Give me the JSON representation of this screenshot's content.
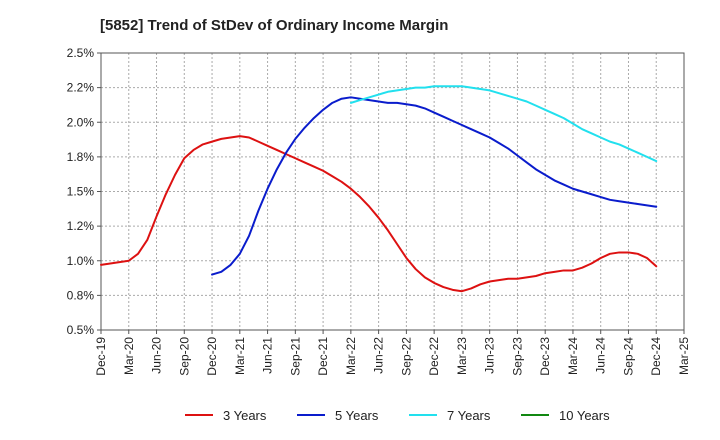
{
  "chart_data": {
    "type": "line",
    "title": "[5852]  Trend of StDev of Ordinary Income Margin",
    "xlabel": "",
    "ylabel": "",
    "x_ticks": [
      "Dec-19",
      "Mar-20",
      "Jun-20",
      "Sep-20",
      "Dec-20",
      "Mar-21",
      "Jun-21",
      "Sep-21",
      "Dec-21",
      "Mar-22",
      "Jun-22",
      "Sep-22",
      "Dec-22",
      "Mar-23",
      "Jun-23",
      "Sep-23",
      "Dec-23",
      "Mar-24",
      "Jun-24",
      "Sep-24",
      "Dec-24",
      "Mar-25"
    ],
    "y_ticks": [
      "0.5%",
      "0.8%",
      "1.0%",
      "1.2%",
      "1.5%",
      "1.8%",
      "2.0%",
      "2.2%",
      "2.5%"
    ],
    "ylim": [
      0.5,
      2.5
    ],
    "grid": true,
    "legend_position": "bottom",
    "series": [
      {
        "name": "3 Years",
        "color": "#dd1111",
        "x": [
          "Dec-19",
          "Jan-20",
          "Feb-20",
          "Mar-20",
          "Apr-20",
          "May-20",
          "Jun-20",
          "Jul-20",
          "Aug-20",
          "Sep-20",
          "Oct-20",
          "Nov-20",
          "Dec-20",
          "Jan-21",
          "Feb-21",
          "Mar-21",
          "Apr-21",
          "May-21",
          "Jun-21",
          "Jul-21",
          "Aug-21",
          "Sep-21",
          "Oct-21",
          "Nov-21",
          "Dec-21",
          "Jan-22",
          "Feb-22",
          "Mar-22",
          "Apr-22",
          "May-22",
          "Jun-22",
          "Jul-22",
          "Aug-22",
          "Sep-22",
          "Oct-22",
          "Nov-22",
          "Dec-22",
          "Jan-23",
          "Feb-23",
          "Mar-23",
          "Apr-23",
          "May-23",
          "Jun-23",
          "Jul-23",
          "Aug-23",
          "Sep-23",
          "Oct-23",
          "Nov-23",
          "Dec-23",
          "Jan-24",
          "Feb-24",
          "Mar-24",
          "Apr-24",
          "May-24",
          "Jun-24",
          "Jul-24",
          "Aug-24",
          "Sep-24",
          "Oct-24",
          "Nov-24",
          "Dec-24"
        ],
        "values": [
          0.97,
          0.98,
          0.99,
          1.0,
          1.05,
          1.15,
          1.32,
          1.48,
          1.62,
          1.74,
          1.8,
          1.84,
          1.86,
          1.88,
          1.89,
          1.9,
          1.89,
          1.86,
          1.83,
          1.8,
          1.77,
          1.74,
          1.71,
          1.68,
          1.65,
          1.61,
          1.57,
          1.52,
          1.46,
          1.39,
          1.31,
          1.22,
          1.12,
          1.02,
          0.94,
          0.88,
          0.84,
          0.81,
          0.79,
          0.78,
          0.8,
          0.83,
          0.85,
          0.86,
          0.87,
          0.87,
          0.88,
          0.89,
          0.91,
          0.92,
          0.93,
          0.93,
          0.95,
          0.98,
          1.02,
          1.05,
          1.06,
          1.06,
          1.05,
          1.02,
          0.96
        ]
      },
      {
        "name": "5 Years",
        "color": "#0a1ccc",
        "x": [
          "Dec-20",
          "Jan-21",
          "Feb-21",
          "Mar-21",
          "Apr-21",
          "May-21",
          "Jun-21",
          "Jul-21",
          "Aug-21",
          "Sep-21",
          "Oct-21",
          "Nov-21",
          "Dec-21",
          "Jan-22",
          "Feb-22",
          "Mar-22",
          "Apr-22",
          "May-22",
          "Jun-22",
          "Jul-22",
          "Aug-22",
          "Sep-22",
          "Oct-22",
          "Nov-22",
          "Dec-22",
          "Jan-23",
          "Feb-23",
          "Mar-23",
          "Apr-23",
          "May-23",
          "Jun-23",
          "Jul-23",
          "Aug-23",
          "Sep-23",
          "Oct-23",
          "Nov-23",
          "Dec-23",
          "Jan-24",
          "Feb-24",
          "Mar-24",
          "Apr-24",
          "May-24",
          "Jun-24",
          "Jul-24",
          "Aug-24",
          "Sep-24",
          "Oct-24",
          "Nov-24",
          "Dec-24"
        ],
        "values": [
          0.9,
          0.92,
          0.97,
          1.05,
          1.18,
          1.36,
          1.52,
          1.66,
          1.78,
          1.88,
          1.96,
          2.03,
          2.09,
          2.14,
          2.17,
          2.18,
          2.17,
          2.16,
          2.15,
          2.14,
          2.14,
          2.13,
          2.12,
          2.1,
          2.07,
          2.04,
          2.01,
          1.98,
          1.95,
          1.92,
          1.89,
          1.85,
          1.81,
          1.76,
          1.71,
          1.66,
          1.62,
          1.58,
          1.55,
          1.52,
          1.5,
          1.48,
          1.46,
          1.44,
          1.43,
          1.42,
          1.41,
          1.4,
          1.39
        ]
      },
      {
        "name": "7 Years",
        "color": "#22e0ee",
        "x": [
          "Mar-22",
          "Apr-22",
          "May-22",
          "Jun-22",
          "Jul-22",
          "Aug-22",
          "Sep-22",
          "Oct-22",
          "Nov-22",
          "Dec-22",
          "Jan-23",
          "Feb-23",
          "Mar-23",
          "Apr-23",
          "May-23",
          "Jun-23",
          "Jul-23",
          "Aug-23",
          "Sep-23",
          "Oct-23",
          "Nov-23",
          "Dec-23",
          "Jan-24",
          "Feb-24",
          "Mar-24",
          "Apr-24",
          "May-24",
          "Jun-24",
          "Jul-24",
          "Aug-24",
          "Sep-24",
          "Oct-24",
          "Nov-24",
          "Dec-24"
        ],
        "values": [
          2.14,
          2.16,
          2.18,
          2.2,
          2.22,
          2.23,
          2.24,
          2.25,
          2.25,
          2.26,
          2.26,
          2.26,
          2.26,
          2.25,
          2.24,
          2.23,
          2.21,
          2.19,
          2.17,
          2.15,
          2.12,
          2.09,
          2.06,
          2.03,
          1.99,
          1.95,
          1.92,
          1.89,
          1.86,
          1.84,
          1.81,
          1.78,
          1.75,
          1.72
        ]
      },
      {
        "name": "10 Years",
        "color": "#118811",
        "x": [],
        "values": []
      }
    ]
  }
}
